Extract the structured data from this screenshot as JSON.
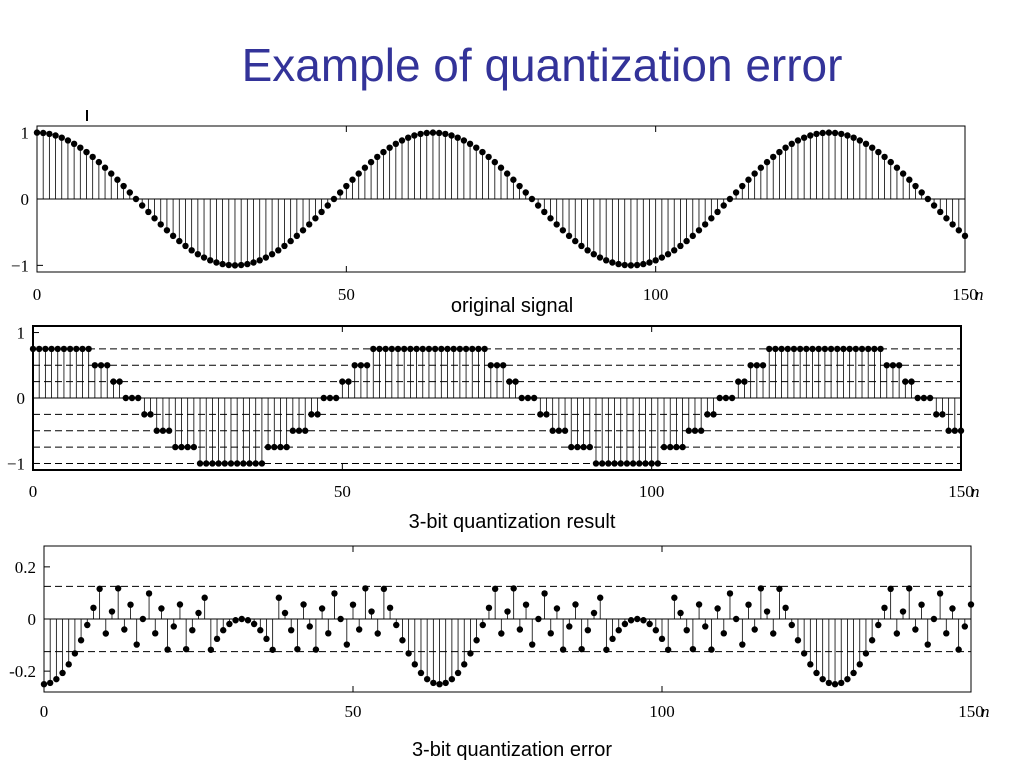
{
  "slide": {
    "title": "Example of quantization error"
  },
  "chart_data": [
    {
      "type": "stem",
      "caption": "original signal",
      "x_axis_label": "n",
      "xlim": [
        0,
        150
      ],
      "ylim": [
        -1.1,
        1.1
      ],
      "x_ticks": [
        0,
        50,
        100,
        150
      ],
      "y_ticks": [
        1,
        0,
        -1
      ],
      "y_tick_labels": [
        "1",
        "0",
        "−1"
      ],
      "n_samples": 151,
      "signal": "cos(2*pi*n/64)",
      "frame": true
    },
    {
      "type": "stem",
      "caption": "3-bit quantization result",
      "x_axis_label": "n",
      "xlim": [
        0,
        150
      ],
      "ylim": [
        -1.1,
        1.1
      ],
      "x_ticks": [
        0,
        50,
        100,
        150
      ],
      "y_ticks": [
        1,
        0,
        -1
      ],
      "y_tick_labels": [
        "1",
        "0",
        "−1"
      ],
      "n_samples": 151,
      "quantizer": {
        "bits": 3,
        "levels": [
          -1,
          -0.75,
          -0.5,
          -0.25,
          0,
          0.25,
          0.5,
          0.75
        ]
      },
      "dashed_levels": [
        -1,
        -0.75,
        -0.5,
        -0.25,
        0.25,
        0.5,
        0.75
      ],
      "frame": true
    },
    {
      "type": "stem",
      "caption": "3-bit quantization error",
      "x_axis_label": "n",
      "xlim": [
        0,
        150
      ],
      "ylim": [
        -0.28,
        0.28
      ],
      "x_ticks": [
        0,
        50,
        100,
        150
      ],
      "y_ticks": [
        0.2,
        0,
        -0.2
      ],
      "y_tick_labels": [
        "0.2",
        "0",
        "-0.2"
      ],
      "n_samples": 151,
      "dashed_levels": [
        0.125,
        -0.125
      ],
      "frame": true
    }
  ]
}
